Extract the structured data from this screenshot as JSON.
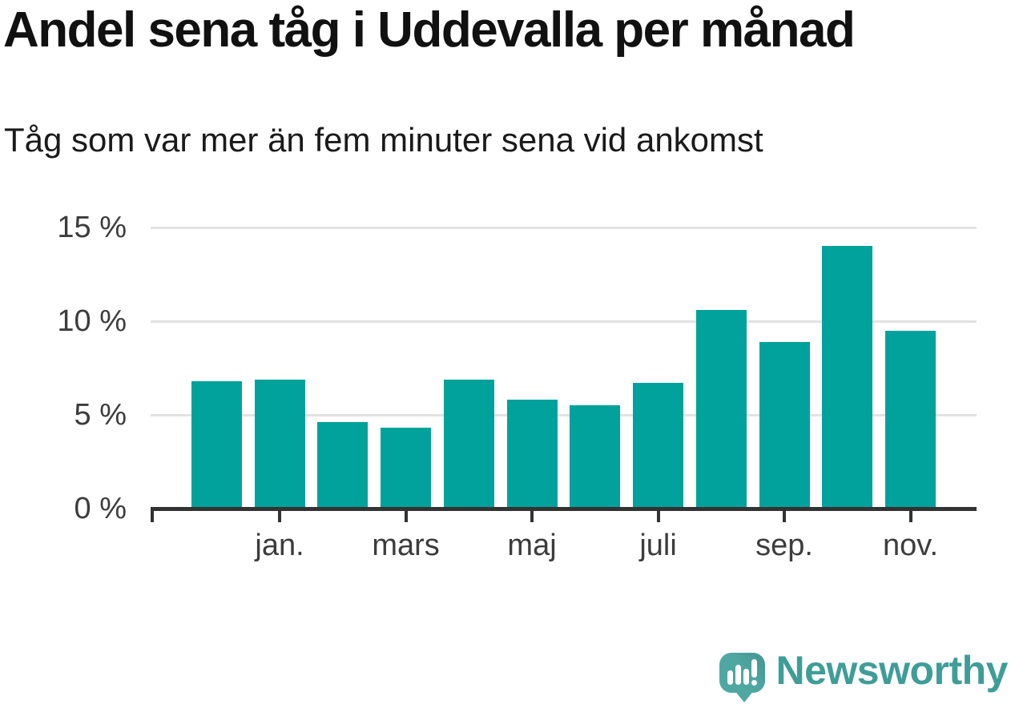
{
  "chart_data": {
    "type": "bar",
    "title": "Andel sena tåg i Uddevalla per månad",
    "subtitle": "Tåg som var mer än fem minuter sena vid ankomst",
    "categories": [
      "",
      "jan.",
      "",
      "mars",
      "",
      "maj",
      "",
      "juli",
      "",
      "sep.",
      "",
      "nov."
    ],
    "values": [
      6.8,
      6.9,
      4.6,
      4.3,
      6.9,
      5.8,
      5.5,
      6.7,
      10.6,
      8.9,
      14.0,
      9.5
    ],
    "unit": "%",
    "ylim": [
      0,
      15
    ],
    "yticks": [
      0,
      5,
      10,
      15
    ],
    "ytick_labels": [
      "0 %",
      "5 %",
      "10 %",
      "15 %"
    ],
    "grid": true,
    "legend": false,
    "bar_color": "#00A29B"
  },
  "footer": {
    "brand": "Newsworthy"
  },
  "colors": {
    "background": "#FFFFFF",
    "bar": "#00A29B",
    "grid": "#E2E2E2",
    "axis": "#333333",
    "tick_text": "#3C3C3C",
    "title_text": "#111111",
    "logo_bubble": "#4FA7A2",
    "logo_bubble_dark": "#43948F",
    "logo_text": "#3F9D98"
  }
}
